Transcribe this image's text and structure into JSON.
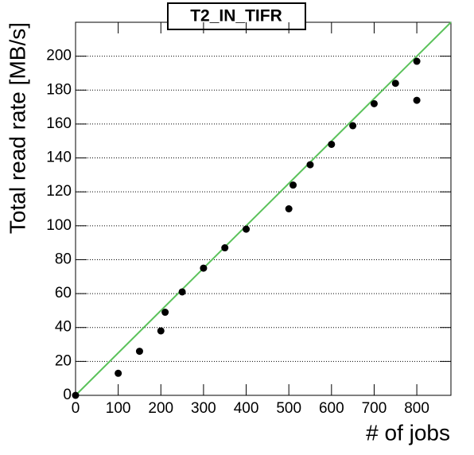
{
  "chart_data": {
    "type": "scatter",
    "title": "T2_IN_TIFR",
    "x_label": "# of jobs",
    "y_label": "Total read rate [MB/s]",
    "x": [
      0,
      100,
      150,
      200,
      210,
      250,
      300,
      350,
      400,
      500,
      510,
      550,
      600,
      650,
      700,
      750,
      800,
      800
    ],
    "values": [
      0,
      13,
      26,
      38,
      49,
      61,
      75,
      87,
      98,
      110,
      124,
      136,
      148,
      159,
      172,
      184,
      197,
      174
    ],
    "color": "#000000",
    "fit_line": {
      "x": [
        0,
        880
      ],
      "y": [
        0,
        220
      ],
      "color": "#5bc25b"
    },
    "xlim": [
      0,
      880
    ],
    "ylim": [
      0,
      220
    ],
    "xticks": [
      0,
      100,
      200,
      300,
      400,
      500,
      600,
      700,
      800
    ],
    "yticks": [
      0,
      20,
      40,
      60,
      80,
      100,
      120,
      140,
      160,
      180,
      200
    ],
    "grid": true
  }
}
